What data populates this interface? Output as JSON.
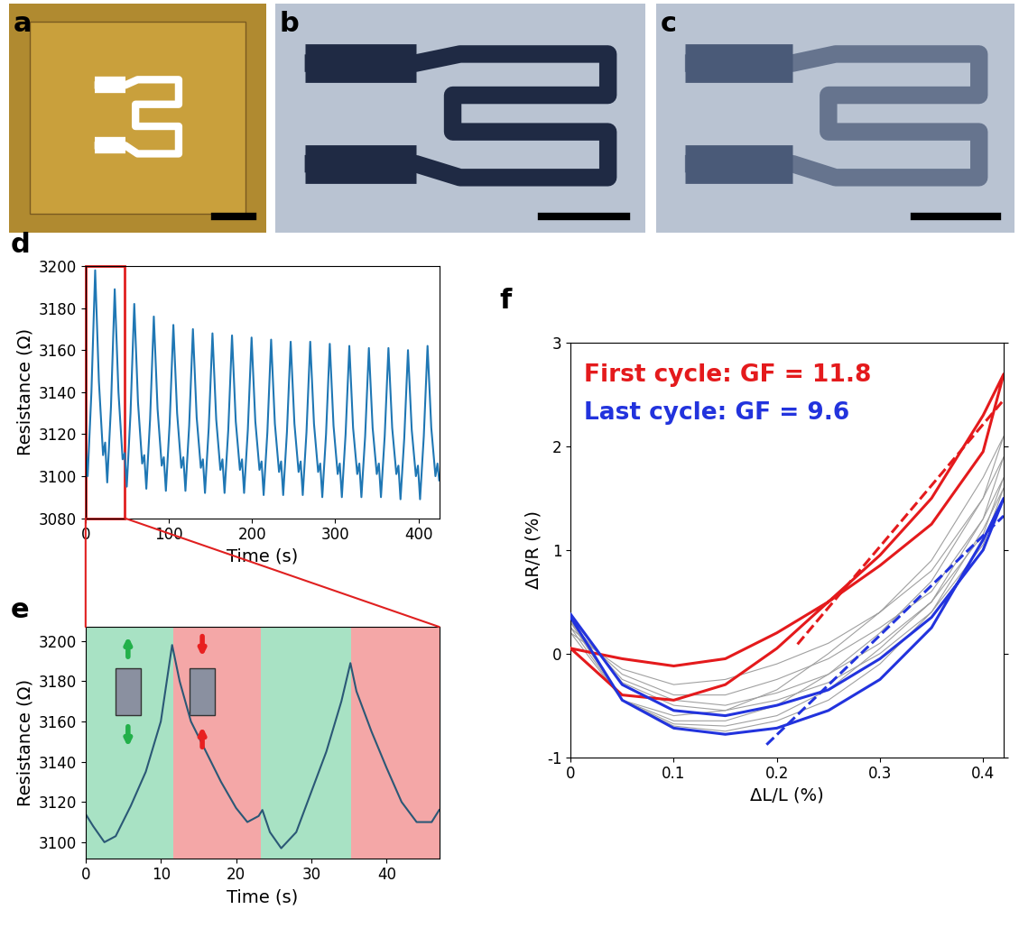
{
  "images": [
    {
      "title": "a"
    },
    {
      "title": "b"
    },
    {
      "title": "c"
    }
  ],
  "chart_data": [
    {
      "type": "line",
      "title": "d",
      "x_label": "Time (s)",
      "y_label": "Resistance (Ω)",
      "color": "#1f77b4",
      "x": [
        0,
        2.5,
        7,
        11.5,
        16,
        21,
        23.5,
        26,
        30.5,
        35,
        39.5,
        44.5,
        47,
        49.5,
        54,
        58.5,
        63,
        68,
        70.5,
        73,
        77.5,
        82,
        86.5,
        91.5,
        94,
        96.5,
        101,
        105.5,
        110,
        115,
        117.5,
        120,
        124.5,
        129,
        133.5,
        138.5,
        141,
        143.5,
        148,
        152.5,
        157,
        162,
        164.5,
        167,
        171.5,
        176,
        180.5,
        185.5,
        188,
        190.5,
        195,
        199.5,
        204,
        209,
        211.5,
        214,
        218.5,
        223,
        227.5,
        232.5,
        235,
        237.5,
        242,
        246.5,
        251,
        256,
        258.5,
        261,
        265.5,
        270,
        274.5,
        279.5,
        282,
        284.5,
        289,
        293.5,
        298,
        303,
        305.5,
        308,
        312.5,
        317,
        321.5,
        326.5,
        329,
        331.5,
        336,
        340.5,
        345,
        350,
        352.5,
        355,
        359.5,
        364,
        368.5,
        373.5,
        376,
        378.5,
        383,
        387.5,
        392,
        397,
        399.5,
        402,
        406.5,
        411,
        415.5,
        420.5,
        423,
        425
      ],
      "values": [
        3113,
        3100,
        3140,
        3198,
        3145,
        3110,
        3116,
        3097,
        3133,
        3189,
        3140,
        3108,
        3111,
        3095,
        3130,
        3182,
        3135,
        3106,
        3110,
        3094,
        3127,
        3176,
        3132,
        3105,
        3109,
        3093,
        3125,
        3172,
        3130,
        3104,
        3109,
        3093,
        3124,
        3170,
        3128,
        3104,
        3108,
        3092,
        3123,
        3168,
        3127,
        3103,
        3108,
        3092,
        3122,
        3167,
        3126,
        3103,
        3108,
        3092,
        3122,
        3166,
        3126,
        3103,
        3107,
        3091,
        3121,
        3165,
        3125,
        3102,
        3107,
        3091,
        3121,
        3164,
        3125,
        3102,
        3107,
        3091,
        3121,
        3164,
        3125,
        3102,
        3106,
        3090,
        3120,
        3163,
        3124,
        3101,
        3106,
        3090,
        3120,
        3162,
        3123,
        3101,
        3106,
        3090,
        3119,
        3161,
        3123,
        3101,
        3106,
        3090,
        3119,
        3161,
        3123,
        3101,
        3105,
        3089,
        3118,
        3160,
        3122,
        3100,
        3105,
        3089,
        3119,
        3162,
        3123,
        3100,
        3106,
        3098
      ],
      "xlim": [
        0,
        425
      ],
      "ylim": [
        3080,
        3200
      ],
      "xticks": [
        0,
        100,
        200,
        300,
        400
      ],
      "yticks": [
        3080,
        3100,
        3120,
        3140,
        3160,
        3180,
        3200
      ],
      "highlight": {
        "x": [
          0,
          47
        ],
        "color": "#e02020"
      }
    },
    {
      "type": "line",
      "title": "e",
      "x_label": "Time (s)",
      "y_label": "Resistance (Ω)",
      "color": "#2b5876",
      "x": [
        0,
        1,
        2.5,
        4,
        6,
        8,
        10,
        11.5,
        12.5,
        14,
        16,
        18,
        20,
        21.5,
        23,
        23.5,
        24.5,
        26,
        28,
        30,
        32,
        34,
        35.2,
        36,
        38,
        40,
        42,
        44,
        46,
        47
      ],
      "values": [
        3114,
        3108,
        3100,
        3103,
        3118,
        3135,
        3160,
        3198,
        3180,
        3160,
        3145,
        3130,
        3117,
        3110,
        3113,
        3116,
        3105,
        3097,
        3105,
        3125,
        3145,
        3170,
        3189,
        3175,
        3155,
        3137,
        3120,
        3110,
        3110,
        3116
      ],
      "xlim": [
        0,
        47
      ],
      "ylim": [
        3092,
        3207
      ],
      "xticks": [
        0,
        10,
        20,
        30,
        40
      ],
      "yticks": [
        3100,
        3120,
        3140,
        3160,
        3180,
        3200
      ],
      "spans": [
        {
          "x": [
            0,
            11.7
          ],
          "color": "#a8e2c4"
        },
        {
          "x": [
            11.7,
            23.3
          ],
          "color": "#f4a7a7"
        },
        {
          "x": [
            23.3,
            35.3
          ],
          "color": "#a8e2c4"
        },
        {
          "x": [
            35.3,
            47
          ],
          "color": "#f4a7a7"
        }
      ]
    },
    {
      "type": "line",
      "title": "f",
      "x_label": "ΔL/L (%)",
      "y_label": "ΔR/R (%)",
      "x": [
        0,
        0.05,
        0.1,
        0.15,
        0.2,
        0.25,
        0.3,
        0.35,
        0.4,
        0.42,
        0.42,
        0.4,
        0.35,
        0.3,
        0.25,
        0.2,
        0.15,
        0.1,
        0.05,
        0
      ],
      "series": [
        {
          "color": "#a0a0a0",
          "line_style": "solid",
          "values": [
            0.2,
            -0.15,
            -0.3,
            -0.25,
            -0.1,
            0.1,
            0.4,
            0.8,
            1.5,
            2.1,
            2.1,
            1.7,
            0.9,
            0.4,
            0.0,
            -0.35,
            -0.55,
            -0.6,
            -0.45,
            0.2
          ]
        },
        {
          "color": "#a0a0a0",
          "line_style": "solid",
          "values": [
            0.25,
            -0.2,
            -0.4,
            -0.4,
            -0.25,
            -0.05,
            0.25,
            0.6,
            1.3,
            1.9,
            1.9,
            1.5,
            0.7,
            0.2,
            -0.2,
            -0.5,
            -0.65,
            -0.65,
            -0.45,
            0.25
          ]
        },
        {
          "color": "#a0a0a0",
          "line_style": "solid",
          "values": [
            0.3,
            -0.25,
            -0.45,
            -0.5,
            -0.38,
            -0.2,
            0.1,
            0.5,
            1.15,
            1.7,
            1.7,
            1.3,
            0.5,
            0.05,
            -0.35,
            -0.6,
            -0.7,
            -0.68,
            -0.45,
            0.3
          ]
        },
        {
          "color": "#a0a0a0",
          "line_style": "solid",
          "values": [
            0.35,
            -0.28,
            -0.5,
            -0.55,
            -0.45,
            -0.28,
            0.0,
            0.4,
            1.05,
            1.6,
            1.6,
            1.2,
            0.4,
            -0.1,
            -0.45,
            -0.65,
            -0.75,
            -0.7,
            -0.45,
            0.32
          ]
        },
        {
          "color": "#e41a1c",
          "line_style": "solid",
          "values": [
            0.05,
            -0.05,
            -0.12,
            -0.05,
            0.2,
            0.5,
            0.85,
            1.25,
            1.95,
            2.7,
            2.7,
            2.3,
            1.5,
            0.95,
            0.5,
            0.05,
            -0.3,
            -0.45,
            -0.4,
            0.05
          ]
        },
        {
          "color": "#2233dd",
          "line_style": "solid",
          "values": [
            0.38,
            -0.3,
            -0.55,
            -0.6,
            -0.5,
            -0.35,
            -0.05,
            0.35,
            1.0,
            1.5,
            1.5,
            1.1,
            0.25,
            -0.25,
            -0.55,
            -0.72,
            -0.78,
            -0.72,
            -0.45,
            0.35
          ]
        },
        {
          "color": "#e41a1c",
          "line_style": "dashed",
          "x": [
            0.22,
            0.42
          ],
          "values": [
            0.09,
            2.45
          ]
        },
        {
          "color": "#2233dd",
          "line_style": "dashed",
          "x": [
            0.19,
            0.42
          ],
          "values": [
            -0.88,
            1.33
          ]
        }
      ],
      "xlim": [
        0,
        0.42
      ],
      "ylim": [
        -1,
        3
      ],
      "xticks": [
        0,
        0.1,
        0.2,
        0.3,
        0.4
      ],
      "yticks": [
        -1,
        0,
        1,
        2,
        3
      ],
      "annotations": [
        {
          "text": "First cycle: GF = 11.8",
          "color": "#e41a1c"
        },
        {
          "text": "Last cycle: GF = 9.6",
          "color": "#2233dd"
        }
      ]
    }
  ]
}
